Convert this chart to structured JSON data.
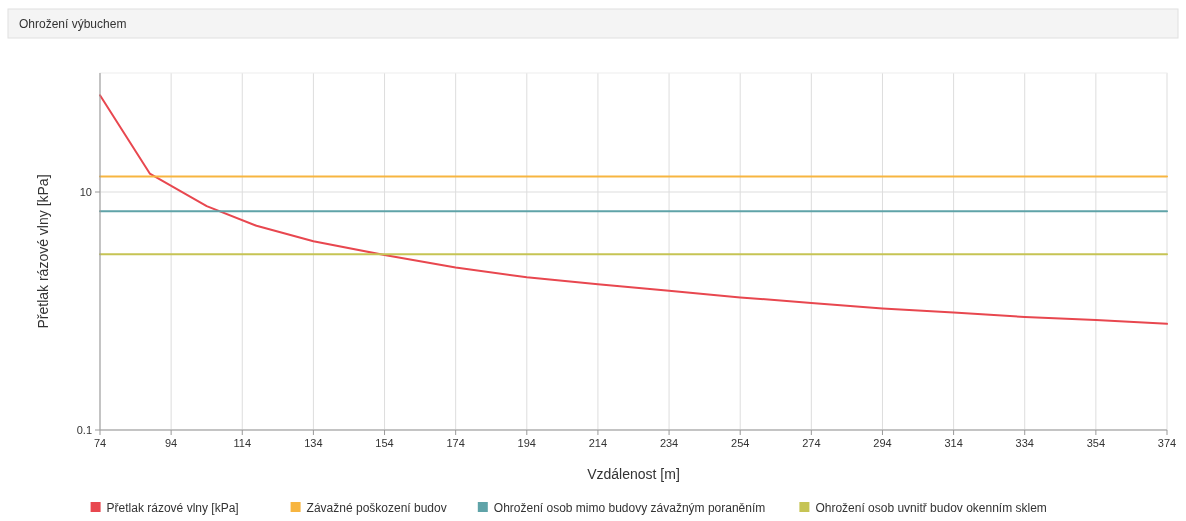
{
  "chart_data": {
    "type": "line",
    "title": "Ohrožení výbuchem",
    "xlabel": "Vzdálenost [m]",
    "ylabel": "Přetlak rázové vlny [kPa]",
    "log": "y",
    "grid": true,
    "legend": "bottom",
    "marker": "none",
    "line_style": "solid",
    "xlim": [
      74,
      374
    ],
    "xticks": [
      74,
      94,
      114,
      134,
      154,
      174,
      194,
      214,
      234,
      254,
      274,
      294,
      314,
      334,
      354,
      374
    ],
    "ylim": [
      0.1,
      100
    ],
    "yticks": [
      0.1,
      10
    ],
    "series": [
      {
        "name": "Přetlak rázové vlny [kPa]",
        "color": "#e8474f",
        "x": [
          74,
          88,
          104,
          118,
          134,
          154,
          174,
          194,
          214,
          234,
          254,
          274,
          294,
          314,
          334,
          354,
          374
        ],
        "values": [
          65,
          14.3,
          7.6,
          5.2,
          3.85,
          2.95,
          2.32,
          1.92,
          1.68,
          1.48,
          1.3,
          1.17,
          1.05,
          0.97,
          0.89,
          0.84,
          0.78
        ]
      },
      {
        "name": "Závažné poškození budov",
        "color": "#f7b540",
        "x": [
          74,
          374
        ],
        "values": [
          13.5,
          13.5
        ]
      },
      {
        "name": "Ohrožení osob mimo budovy závažným poraněním",
        "color": "#5fa3a8",
        "x": [
          74,
          374
        ],
        "values": [
          6.9,
          6.9
        ]
      },
      {
        "name": "Ohrožení osob uvnitř budov okenním sklem",
        "color": "#c6c454",
        "x": [
          74,
          374
        ],
        "values": [
          3,
          3
        ]
      }
    ]
  }
}
